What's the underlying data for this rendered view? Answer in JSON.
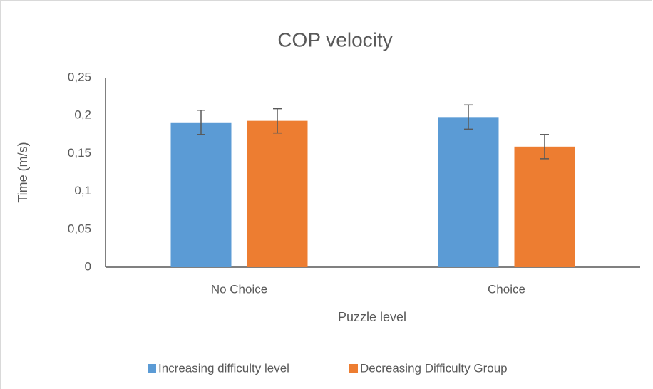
{
  "chart_data": {
    "type": "bar",
    "title": "COP velocity",
    "xlabel": "Puzzle level",
    "ylabel": "Time (m/s)",
    "categories": [
      "No Choice",
      "Choice"
    ],
    "series": [
      {
        "name": "Increasing difficulty level",
        "color": "#5b9bd5",
        "values": [
          0.191,
          0.198
        ],
        "errors": [
          0.016,
          0.016
        ]
      },
      {
        "name": "Decreasing Difficulty Group",
        "color": "#ed7d31",
        "values": [
          0.193,
          0.159
        ],
        "errors": [
          0.016,
          0.016
        ]
      }
    ],
    "ylim": [
      0,
      0.25
    ],
    "yticks": [
      0,
      {
        "value": 0.05,
        "label": "0,05"
      },
      {
        "value": 0.1,
        "label": "0,1"
      },
      {
        "value": 0.15,
        "label": "0,15"
      },
      {
        "value": 0.2,
        "label": "0,2"
      },
      {
        "value": 0.25,
        "label": "0,25"
      }
    ],
    "legend": "bottom",
    "grid": false
  }
}
